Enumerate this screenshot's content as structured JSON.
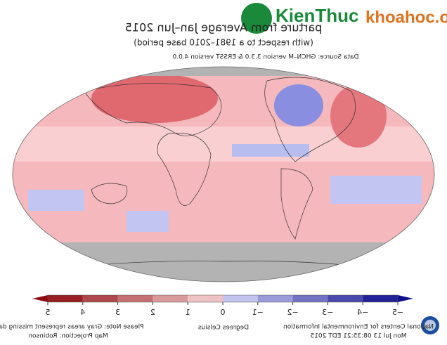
{
  "title": "parture from Average Jan–Jun 2015",
  "subtitle": "(with respect to a 1981–2010 base period)",
  "source": "Data Source: GHCN–M version 3.3.0 & ERSST version 4.0.0",
  "colorbar": {
    "ticks": [
      5,
      4,
      3,
      2,
      1,
      0,
      {
        "value": -1,
        "label": "−1"
      },
      {
        "value": -2,
        "label": "−2"
      },
      {
        "value": -3,
        "label": "−3"
      },
      {
        "value": -4,
        "label": "−4"
      },
      {
        "value": -5,
        "label": "−5"
      }
    ],
    "label": "Degrees Celsius"
  },
  "notes": [
    "Please Note: Gray areas represent missing data",
    "Map Projection: Robinson"
  ],
  "credits": [
    "National Centers for Environmental Information",
    "Mon Jul 13 08:35:21 EDT 2015"
  ],
  "watermark": [
    "KienThuc",
    "khoahoc.org"
  ]
}
